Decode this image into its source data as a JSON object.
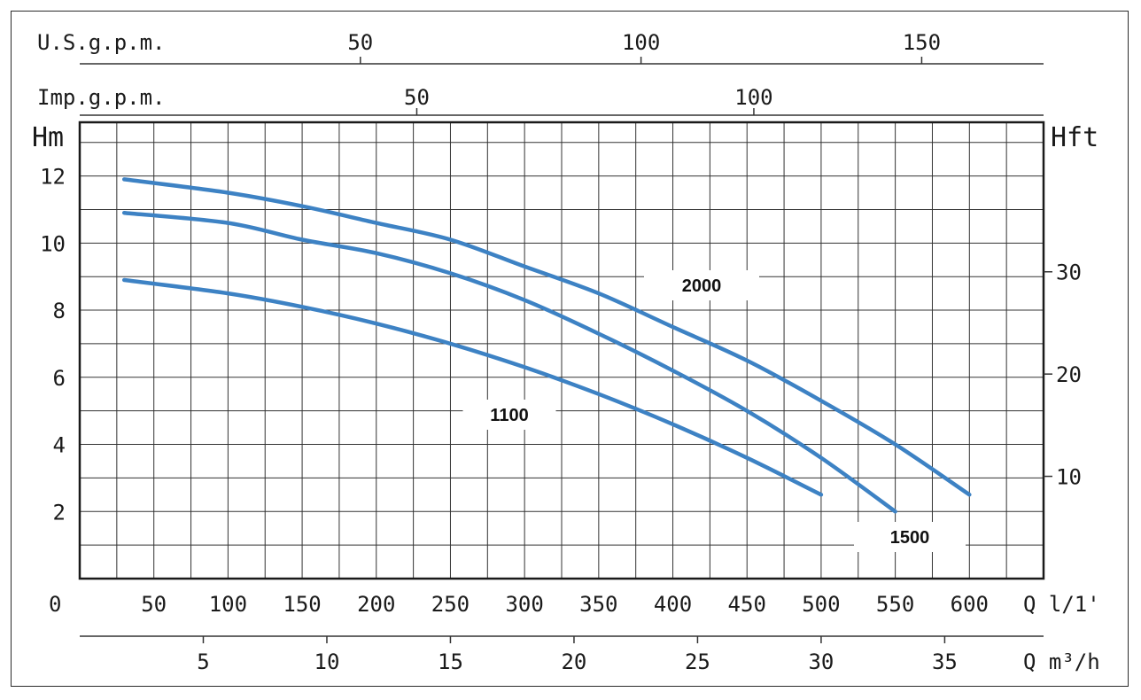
{
  "chart_data": {
    "type": "line",
    "left_axis_title": "Hm",
    "right_axis_title": "Hft",
    "top_axis_1_title": "U.S.g.p.m.",
    "top_axis_2_title": "Imp.g.p.m.",
    "bottom_axis_1_title": "Q l/1'",
    "bottom_axis_2_title": "Q m³/h",
    "origin_label": "0",
    "xlim": [
      0,
      650
    ],
    "ylim": [
      0,
      13.6
    ],
    "grid": true,
    "x_ticks_lpm": [
      "50",
      "100",
      "150",
      "200",
      "250",
      "300",
      "350",
      "400",
      "450",
      "500",
      "550",
      "600"
    ],
    "x_ticks_m3h": [
      "5",
      "10",
      "15",
      "20",
      "25",
      "30",
      "35"
    ],
    "x_ticks_usgpm": [
      "50",
      "100",
      "150"
    ],
    "x_ticks_impgpm": [
      "50",
      "100"
    ],
    "y_ticks_m": [
      "2",
      "4",
      "6",
      "8",
      "10",
      "12"
    ],
    "y_ticks_ft": [
      "10",
      "20",
      "30"
    ],
    "line_color": "#3d82c4",
    "series": [
      {
        "name": "1100",
        "x": [
          30,
          100,
          150,
          200,
          250,
          300,
          350,
          400,
          450,
          500
        ],
        "y": [
          8.9,
          8.5,
          8.1,
          7.6,
          7.0,
          6.3,
          5.5,
          4.6,
          3.6,
          2.5
        ]
      },
      {
        "name": "1500",
        "x": [
          30,
          100,
          150,
          200,
          250,
          300,
          350,
          400,
          450,
          500,
          550
        ],
        "y": [
          10.9,
          10.6,
          10.1,
          9.7,
          9.1,
          8.3,
          7.3,
          6.2,
          5.0,
          3.6,
          2.0
        ]
      },
      {
        "name": "2000",
        "x": [
          30,
          100,
          150,
          200,
          250,
          300,
          350,
          400,
          450,
          500,
          550,
          600
        ],
        "y": [
          11.9,
          11.5,
          11.1,
          10.6,
          10.1,
          9.3,
          8.5,
          7.5,
          6.5,
          5.3,
          4.0,
          2.5
        ]
      }
    ]
  }
}
